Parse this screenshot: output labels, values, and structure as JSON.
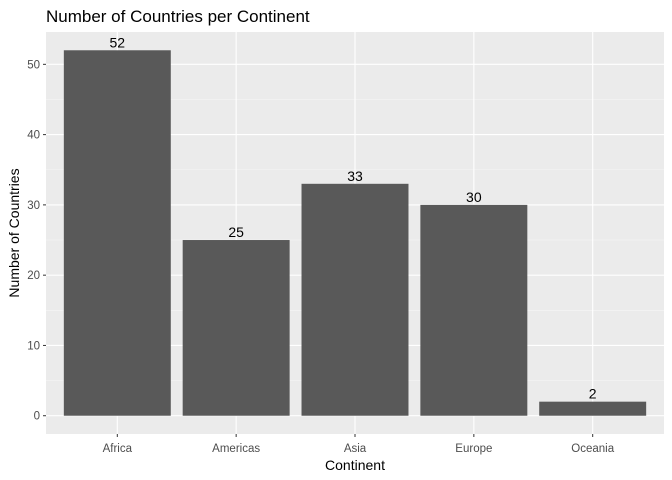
{
  "chart_data": {
    "type": "bar",
    "title": "Number of Countries per Continent",
    "xlabel": "Continent",
    "ylabel": "Number of Countries",
    "categories": [
      "Africa",
      "Americas",
      "Asia",
      "Europe",
      "Oceania"
    ],
    "values": [
      52,
      25,
      33,
      30,
      2
    ],
    "data_labels": [
      "52",
      "25",
      "33",
      "30",
      "2"
    ],
    "ylim": [
      -2.6,
      54.6
    ],
    "yticks": [
      0,
      10,
      20,
      30,
      40,
      50
    ],
    "grid": true,
    "legend": "none",
    "colors": {
      "bar": "#595959",
      "panel": "#ebebeb",
      "grid_major": "#ffffff",
      "grid_minor": "#f5f5f5",
      "tick_text": "#4d4d4d"
    }
  }
}
